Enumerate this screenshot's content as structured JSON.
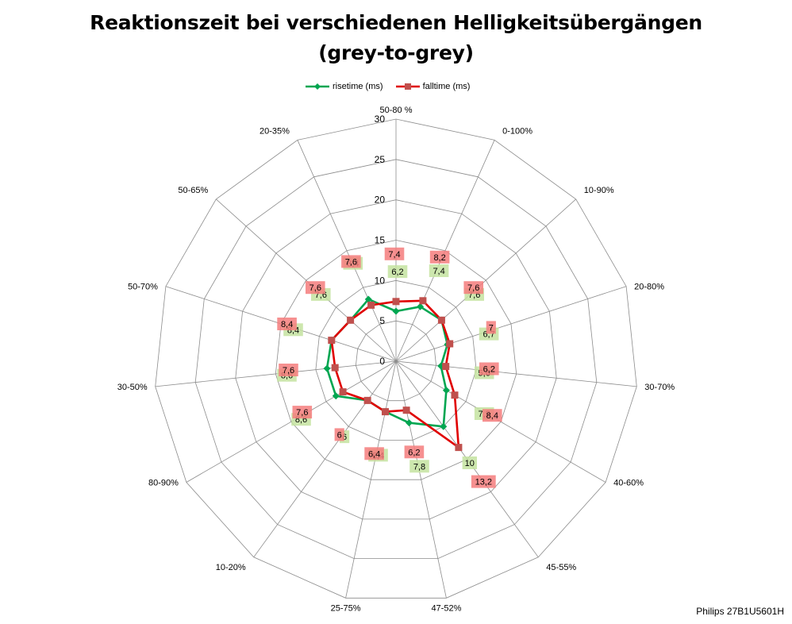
{
  "title_line1": "Reaktionszeit bei verschiedenen Helligkeitsübergängen",
  "title_line2": "(grey-to-grey)",
  "footer": "Philips 27B1U5601H",
  "chart_data": {
    "type": "radar",
    "categories": [
      "50-80 %",
      "0-100%",
      "10-90%",
      "20-80%",
      "30-70%",
      "40-60%",
      "45-55%",
      "47-52%",
      "25-75%",
      "10-20%",
      "80-90%",
      "30-50%",
      "50-70%",
      "50-65%",
      "20-35%"
    ],
    "series": [
      {
        "name": "risetime (ms)",
        "color": "#00A651",
        "marker": "diamond",
        "label_bg": "#C4E3A0",
        "values": [
          6.2,
          7.4,
          7.6,
          6.7,
          5.6,
          7.2,
          10,
          7.8,
          6.4,
          6,
          8.6,
          8.6,
          8.4,
          7.6,
          8.4
        ]
      },
      {
        "name": "falltime (ms)",
        "color": "#E00000",
        "marker": "square",
        "label_bg": "#F47C7C",
        "values": [
          7.4,
          8.2,
          7.6,
          7,
          6.2,
          8.4,
          13.2,
          6.2,
          6.4,
          6,
          7.6,
          7.6,
          8.4,
          7.6,
          7.6
        ]
      }
    ],
    "radial_axis": {
      "min": 0,
      "max": 30,
      "step": 5,
      "ticks": [
        "0",
        "5",
        "10",
        "15",
        "20",
        "25",
        "30"
      ]
    },
    "legend_position": "top",
    "grid": true
  }
}
